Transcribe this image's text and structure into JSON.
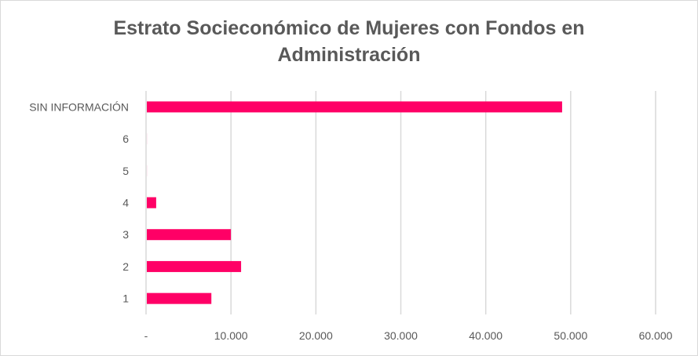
{
  "chart_data": {
    "type": "bar",
    "orientation": "horizontal",
    "title_lines": [
      "Estrato Socieconómico de Mujeres con Fondos en",
      "Administración"
    ],
    "categories": [
      "SIN INFORMACIÓN",
      "6",
      "5",
      "4",
      "3",
      "2",
      "1"
    ],
    "values": [
      48900,
      30,
      20,
      1100,
      9900,
      11100,
      7600
    ],
    "xlim": [
      0,
      60000
    ],
    "xticks": [
      0,
      10000,
      20000,
      30000,
      40000,
      50000,
      60000
    ],
    "xtick_labels": [
      "-",
      "10.000",
      "20.000",
      "30.000",
      "40.000",
      "50.000",
      "60.000"
    ],
    "grid": true,
    "legend": "none",
    "bar_color": "#ff0066",
    "xlabel": "",
    "ylabel": ""
  }
}
